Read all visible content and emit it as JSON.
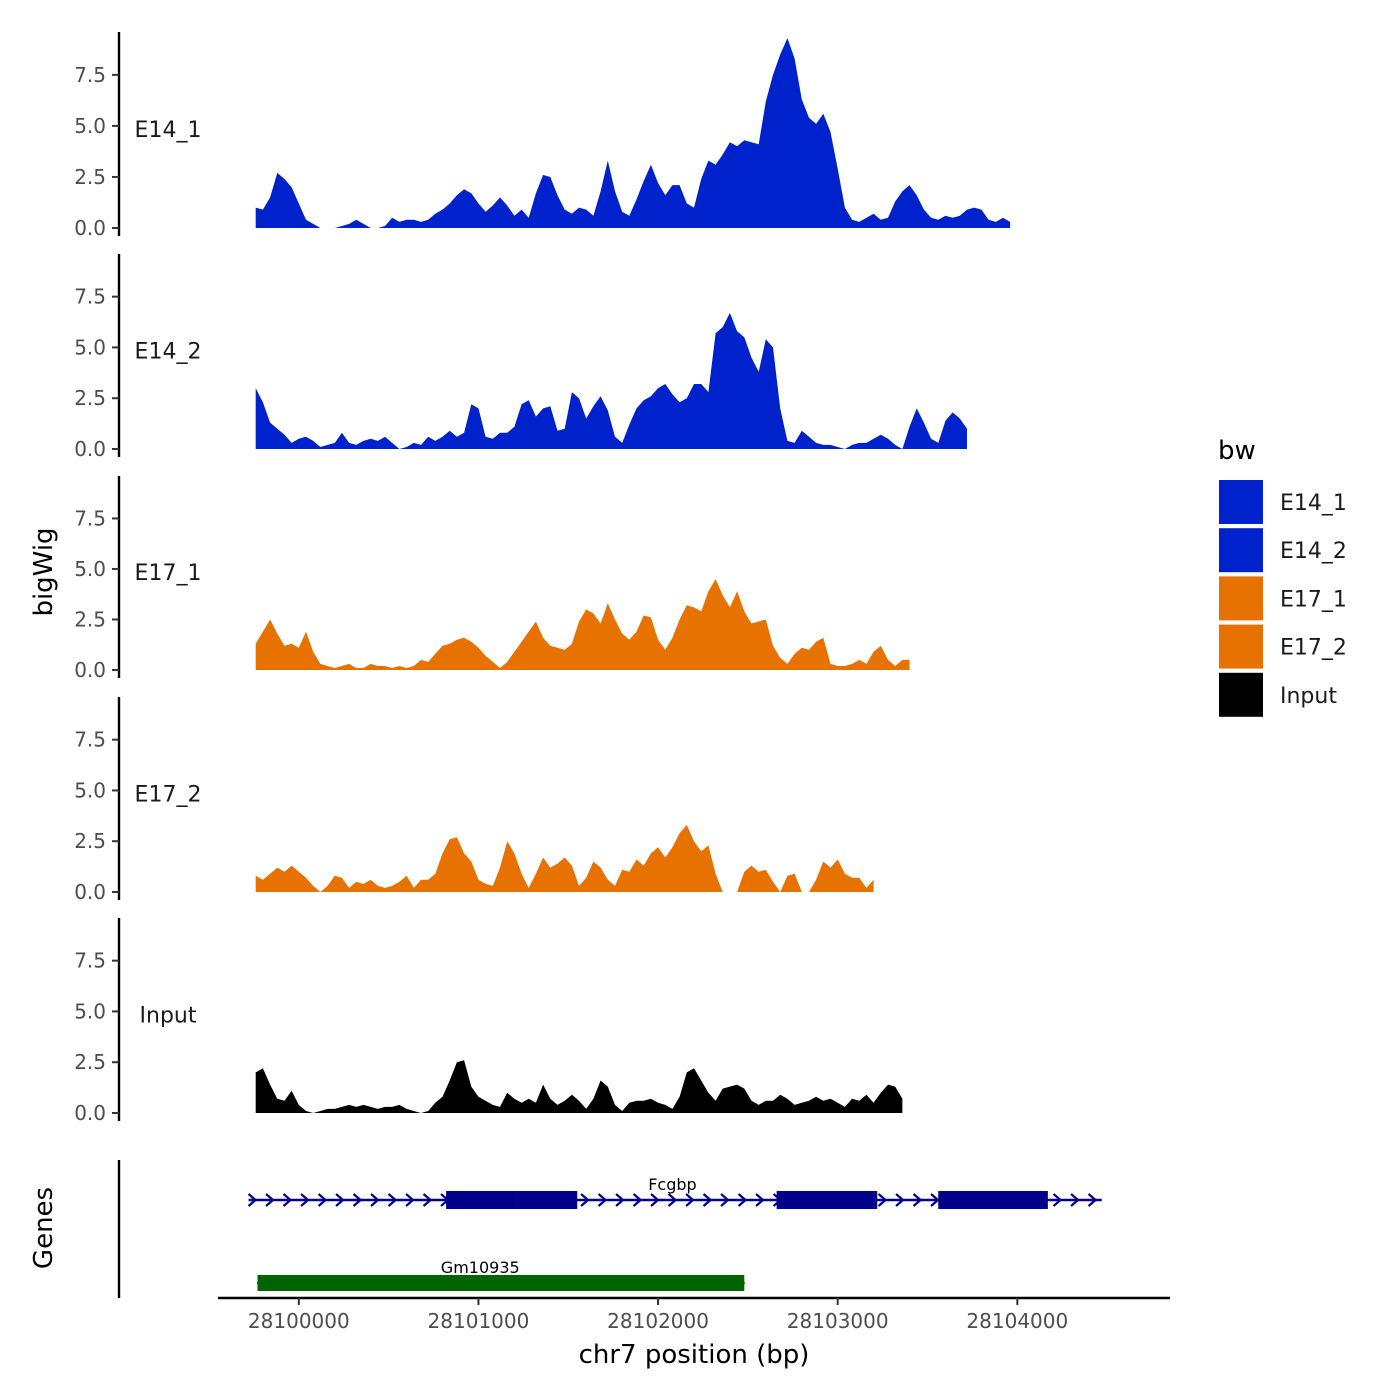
{
  "chart_data": {
    "type": "area",
    "title": "",
    "xlabel": "chr7 position (bp)",
    "ylabel": "bigWig",
    "xlim": [
      28099550,
      28104850
    ],
    "ylim": [
      0,
      9.6
    ],
    "x_ticks": [
      28100000,
      28101000,
      28102000,
      28103000,
      28104000
    ],
    "x_tick_labels": [
      "28100000",
      "28101000",
      "28102000",
      "28103000",
      "28104000"
    ],
    "y_ticks": [
      0,
      2.5,
      5,
      7.5
    ],
    "y_tick_labels": [
      "0.0",
      "2.5",
      "5.0",
      "7.5"
    ],
    "x_start": 28099760,
    "x_step": 40,
    "series": [
      {
        "name": "E14_1",
        "color": "#0022CC",
        "values": [
          1.0,
          0.9,
          1.5,
          2.7,
          2.4,
          2.0,
          1.2,
          0.4,
          0.2,
          0.0,
          0.0,
          0.0,
          0.1,
          0.2,
          0.4,
          0.2,
          0.0,
          0.0,
          0.1,
          0.5,
          0.3,
          0.4,
          0.4,
          0.3,
          0.4,
          0.7,
          0.9,
          1.2,
          1.6,
          1.9,
          1.7,
          1.2,
          0.8,
          1.1,
          1.5,
          1.1,
          0.6,
          0.9,
          0.5,
          1.7,
          2.6,
          2.5,
          1.6,
          0.9,
          0.7,
          1.0,
          0.9,
          0.6,
          1.8,
          3.3,
          1.8,
          0.8,
          0.6,
          1.4,
          2.3,
          3.1,
          2.2,
          1.6,
          2.1,
          2.1,
          1.2,
          1.0,
          2.4,
          3.3,
          3.1,
          3.6,
          4.2,
          4.0,
          4.3,
          4.2,
          4.1,
          6.2,
          7.5,
          8.5,
          9.3,
          8.3,
          6.3,
          5.4,
          5.1,
          5.6,
          4.7,
          2.9,
          1.0,
          0.4,
          0.3,
          0.5,
          0.7,
          0.4,
          0.5,
          1.3,
          1.8,
          2.1,
          1.6,
          0.9,
          0.5,
          0.4,
          0.6,
          0.5,
          0.6,
          0.9,
          1.0,
          0.9,
          0.4,
          0.3,
          0.5,
          0.3
        ]
      },
      {
        "name": "E14_2",
        "color": "#0022CC",
        "values": [
          3.0,
          2.3,
          1.3,
          1.0,
          0.7,
          0.3,
          0.5,
          0.6,
          0.4,
          0.1,
          0.2,
          0.3,
          0.8,
          0.3,
          0.2,
          0.4,
          0.5,
          0.4,
          0.6,
          0.3,
          0.0,
          0.1,
          0.3,
          0.2,
          0.6,
          0.4,
          0.6,
          0.9,
          0.6,
          0.8,
          2.2,
          2.0,
          0.6,
          0.5,
          0.8,
          0.8,
          1.1,
          2.2,
          2.4,
          1.6,
          2.0,
          2.1,
          0.9,
          1.0,
          2.8,
          2.5,
          1.5,
          2.1,
          2.6,
          1.9,
          0.6,
          0.3,
          1.2,
          2.0,
          2.4,
          2.6,
          3.0,
          3.2,
          2.7,
          2.3,
          2.5,
          3.2,
          3.2,
          2.8,
          5.7,
          6.0,
          6.7,
          5.8,
          5.5,
          4.5,
          3.8,
          5.4,
          5.0,
          2.0,
          0.4,
          0.3,
          0.9,
          0.6,
          0.3,
          0.2,
          0.2,
          0.1,
          0.0,
          0.2,
          0.3,
          0.3,
          0.5,
          0.7,
          0.5,
          0.2,
          0.0,
          1.1,
          2.0,
          1.3,
          0.5,
          0.3,
          1.4,
          1.8,
          1.5,
          1.0
        ]
      },
      {
        "name": "E17_1",
        "color": "#E87200",
        "values": [
          1.3,
          1.9,
          2.5,
          1.8,
          1.2,
          1.3,
          1.1,
          1.9,
          0.9,
          0.3,
          0.2,
          0.1,
          0.2,
          0.3,
          0.1,
          0.1,
          0.3,
          0.2,
          0.2,
          0.1,
          0.2,
          0.1,
          0.2,
          0.5,
          0.4,
          0.8,
          1.2,
          1.3,
          1.5,
          1.6,
          1.4,
          1.1,
          0.7,
          0.4,
          0.1,
          0.4,
          0.9,
          1.4,
          1.9,
          2.4,
          1.6,
          1.2,
          1.1,
          1.0,
          1.3,
          2.4,
          3.0,
          2.8,
          2.3,
          3.3,
          2.5,
          1.8,
          1.5,
          1.9,
          2.7,
          2.6,
          1.5,
          1.0,
          1.6,
          2.5,
          3.2,
          3.1,
          2.9,
          3.9,
          4.5,
          3.7,
          3.1,
          3.9,
          2.9,
          2.3,
          2.4,
          2.5,
          1.2,
          0.6,
          0.3,
          0.8,
          1.1,
          1.0,
          1.4,
          1.6,
          0.3,
          0.2,
          0.2,
          0.3,
          0.5,
          0.3,
          0.9,
          1.2,
          0.5,
          0.2,
          0.5,
          0.5
        ]
      },
      {
        "name": "E17_2",
        "color": "#E87200",
        "values": [
          0.8,
          0.6,
          0.9,
          1.2,
          1.0,
          1.3,
          1.0,
          0.7,
          0.3,
          0.0,
          0.3,
          0.8,
          0.7,
          0.2,
          0.5,
          0.4,
          0.6,
          0.3,
          0.2,
          0.3,
          0.5,
          0.8,
          0.2,
          0.6,
          0.6,
          0.9,
          1.9,
          2.6,
          2.7,
          1.9,
          1.5,
          0.6,
          0.4,
          0.3,
          1.2,
          2.5,
          1.9,
          0.9,
          0.2,
          0.9,
          1.7,
          1.2,
          1.4,
          1.7,
          1.3,
          0.3,
          0.7,
          1.5,
          1.2,
          0.6,
          0.3,
          1.1,
          1.0,
          1.6,
          1.3,
          1.9,
          2.2,
          1.7,
          2.2,
          2.9,
          3.3,
          2.5,
          2.0,
          2.3,
          0.9,
          0.0,
          0.0,
          0.0,
          1.0,
          1.3,
          1.0,
          1.1,
          0.5,
          0.0,
          0.8,
          0.9,
          0.0,
          0.0,
          0.6,
          1.5,
          1.2,
          1.6,
          0.9,
          0.7,
          0.7,
          0.2,
          0.6
        ]
      },
      {
        "name": "Input",
        "color": "#000000",
        "values": [
          2.0,
          2.2,
          1.4,
          0.7,
          0.6,
          1.1,
          0.4,
          0.1,
          0.0,
          0.1,
          0.2,
          0.2,
          0.3,
          0.4,
          0.3,
          0.4,
          0.3,
          0.2,
          0.3,
          0.3,
          0.4,
          0.2,
          0.1,
          0.0,
          0.1,
          0.5,
          0.8,
          1.6,
          2.5,
          2.6,
          1.3,
          0.8,
          0.6,
          0.4,
          0.3,
          1.0,
          0.7,
          0.5,
          0.7,
          0.5,
          1.4,
          0.7,
          0.4,
          0.6,
          0.9,
          0.6,
          0.2,
          0.7,
          1.6,
          1.3,
          0.4,
          0.1,
          0.5,
          0.6,
          0.6,
          0.7,
          0.5,
          0.4,
          0.2,
          0.8,
          2.0,
          2.2,
          1.6,
          1.0,
          0.6,
          1.2,
          1.3,
          1.4,
          1.2,
          0.6,
          0.4,
          0.6,
          0.6,
          0.9,
          0.7,
          0.4,
          0.5,
          0.6,
          0.8,
          0.6,
          0.7,
          0.5,
          0.3,
          0.7,
          0.6,
          0.9,
          0.5,
          1.0,
          1.4,
          1.3,
          0.7
        ]
      }
    ],
    "legend": {
      "title": "bw",
      "position": "right",
      "entries": [
        {
          "label": "E14_1",
          "color": "#0022CC"
        },
        {
          "label": "E14_2",
          "color": "#0022CC"
        },
        {
          "label": "E17_1",
          "color": "#E87200"
        },
        {
          "label": "E17_2",
          "color": "#E87200"
        },
        {
          "label": "Input",
          "color": "#000000"
        }
      ]
    },
    "genes_track": {
      "label": "Genes",
      "genes": [
        {
          "name": "Fcgbp",
          "color": "#00008B",
          "strand": "+",
          "start": 28099720,
          "end": 28104470,
          "exons": [
            [
              28100820,
              28101220
            ],
            [
              28101220,
              28101550
            ],
            [
              28102660,
              28103220
            ],
            [
              28103560,
              28104170
            ]
          ]
        },
        {
          "name": "Gm10935",
          "color": "#006400",
          "strand": "+",
          "start": 28099770,
          "end": 28102480,
          "exons": [
            [
              28099770,
              28102480
            ]
          ]
        }
      ]
    }
  }
}
